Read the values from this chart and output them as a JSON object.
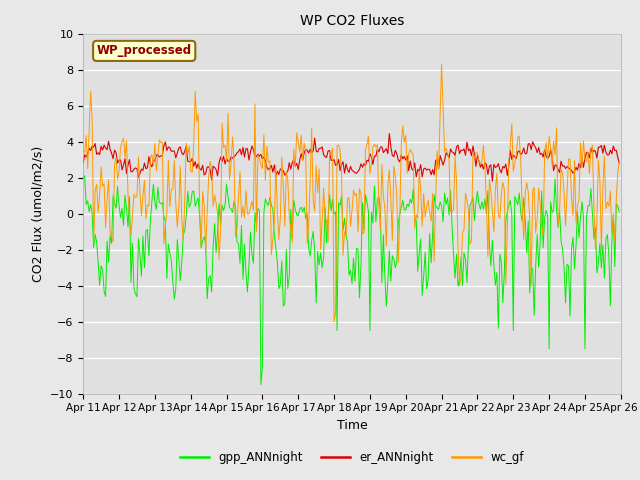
{
  "title": "WP CO2 Fluxes",
  "xlabel": "Time",
  "ylabel": "CO2 Flux (umol/m2/s)",
  "ylim": [
    -10,
    10
  ],
  "xlim": [
    0,
    360
  ],
  "fig_bg": "#e8e8e8",
  "plot_bg": "#e0e0e0",
  "annotation_text": "WP_processed",
  "annotation_color": "#8b0000",
  "annotation_bg": "#ffffcc",
  "annotation_border": "#8b6914",
  "legend_entries": [
    "gpp_ANNnight",
    "er_ANNnight",
    "wc_gf"
  ],
  "legend_colors": [
    "#00ee00",
    "#dd0000",
    "#ff9900"
  ],
  "n_points": 360,
  "x_tick_labels": [
    "Apr 11",
    "Apr 12",
    "Apr 13",
    "Apr 14",
    "Apr 15",
    "Apr 16",
    "Apr 17",
    "Apr 18",
    "Apr 19",
    "Apr 20",
    "Apr 21",
    "Apr 22",
    "Apr 23",
    "Apr 24",
    "Apr 25",
    "Apr 26"
  ],
  "x_tick_positions": [
    0,
    24,
    48,
    72,
    96,
    120,
    144,
    168,
    192,
    216,
    240,
    264,
    288,
    312,
    336,
    360
  ],
  "yticks": [
    -10,
    -8,
    -6,
    -4,
    -2,
    0,
    2,
    4,
    6,
    8,
    10
  ]
}
